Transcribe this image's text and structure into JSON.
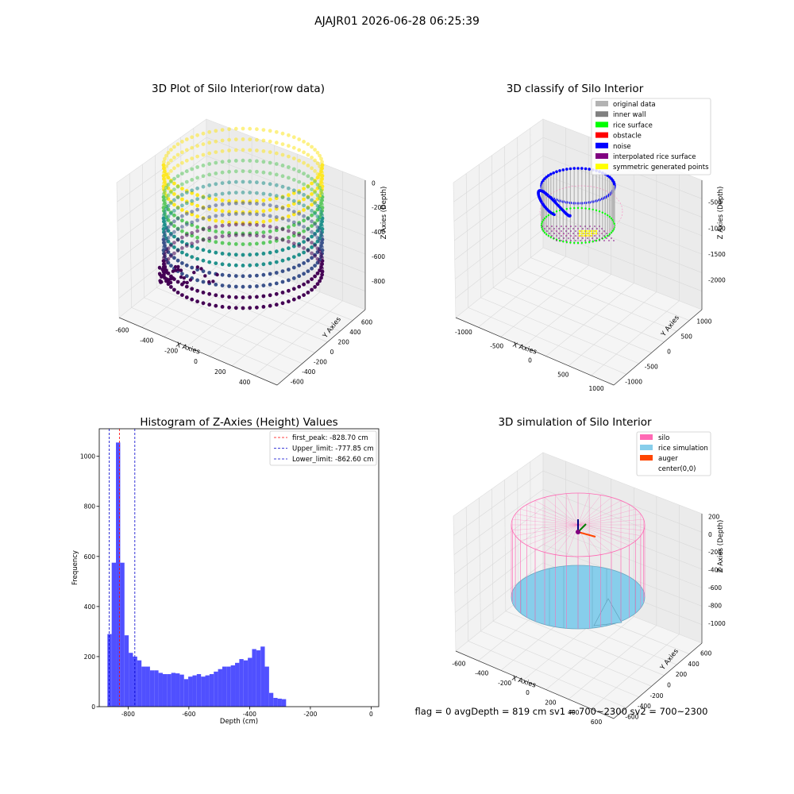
{
  "figure": {
    "suptitle": "AJAJR01 2026-06-28 06:25:39",
    "status_text": "flag = 0     avgDepth = 819 cm  sv1 = 700~2300  sv2 = 700~2300"
  },
  "plots": {
    "raw": {
      "title": "3D Plot of Silo Interior(row data)",
      "xlabel": "X Axies",
      "ylabel": "Y Axies",
      "zlabel": "Z Axies (Depth)",
      "xticks": [
        "-600",
        "-400",
        "-200",
        "0",
        "200",
        "400"
      ],
      "yticks": [
        "-600",
        "-400",
        "-200",
        "0",
        "200",
        "400",
        "600"
      ],
      "zticks": [
        "0",
        "-200",
        "-400",
        "-600",
        "-800"
      ],
      "colormap": [
        "#440154",
        "#3b528b",
        "#21918c",
        "#5ec962",
        "#fde725"
      ]
    },
    "classify": {
      "title": "3D classify of Silo Interior",
      "xlabel": "X Axies",
      "ylabel": "Y Axies",
      "zlabel": "Z Axies (Depth)",
      "xticks": [
        "-1000",
        "-500",
        "0",
        "500",
        "1000"
      ],
      "yticks": [
        "-1000",
        "-500",
        "0",
        "500",
        "1000"
      ],
      "zticks": [
        "-500",
        "-1000",
        "-1500",
        "-2000"
      ],
      "legend": [
        {
          "label": "original data",
          "color": "#b3b3b3"
        },
        {
          "label": "inner wall",
          "color": "#808080"
        },
        {
          "label": "rice surface",
          "color": "#00ff00"
        },
        {
          "label": "obstacle",
          "color": "#ff0000"
        },
        {
          "label": "noise",
          "color": "#0000ff"
        },
        {
          "label": "interpolated rice surface",
          "color": "#800080"
        },
        {
          "label": "symmetric generated points",
          "color": "#ffff00"
        }
      ]
    },
    "simulation": {
      "title": "3D simulation of Silo Interior",
      "xlabel": "X Axies",
      "ylabel": "Y Axies",
      "zlabel": "Z Axies (Depth)",
      "xticks": [
        "-600",
        "-400",
        "-200",
        "0",
        "200",
        "400",
        "600"
      ],
      "yticks": [
        "-600",
        "-400",
        "-200",
        "0",
        "200",
        "400",
        "600"
      ],
      "zticks": [
        "200",
        "0",
        "-200",
        "-400",
        "-600",
        "-800",
        "-1000"
      ],
      "legend": [
        {
          "label": "silo",
          "color": "#ff69b4"
        },
        {
          "label": "rice simulation",
          "color": "#87ceeb"
        },
        {
          "label": "auger",
          "color": "#ff4500"
        },
        {
          "label": "center(0,0)",
          "color": "#ffffff"
        }
      ]
    }
  },
  "chart_data": {
    "type": "bar",
    "title": "Histogram of Z-Axies (Height) Values",
    "xlabel": "Depth (cm)",
    "ylabel": "Frequency",
    "xlim": [
      -895,
      25
    ],
    "ylim": [
      0,
      1110
    ],
    "xticks": [
      -800,
      -600,
      -400,
      -200,
      0
    ],
    "yticks": [
      0,
      200,
      400,
      600,
      800,
      1000
    ],
    "bar_color": "#5050ff",
    "bin_start": -868,
    "bin_width": 14,
    "values": [
      290,
      575,
      1055,
      575,
      285,
      215,
      200,
      185,
      160,
      160,
      145,
      145,
      135,
      130,
      130,
      135,
      133,
      128,
      110,
      120,
      125,
      130,
      120,
      125,
      130,
      140,
      150,
      160,
      160,
      165,
      175,
      190,
      185,
      195,
      230,
      225,
      240,
      160,
      55,
      35,
      32,
      30
    ],
    "lines": [
      {
        "label": "first_peak: -828.70 cm",
        "x": -828.7,
        "color": "#ff0000"
      },
      {
        "label": "Upper_limit: -777.85 cm",
        "x": -777.85,
        "color": "#0000cd"
      },
      {
        "label": "Lower_limit: -862.60 cm",
        "x": -862.6,
        "color": "#0000cd"
      }
    ],
    "legend_position": "upper right"
  }
}
